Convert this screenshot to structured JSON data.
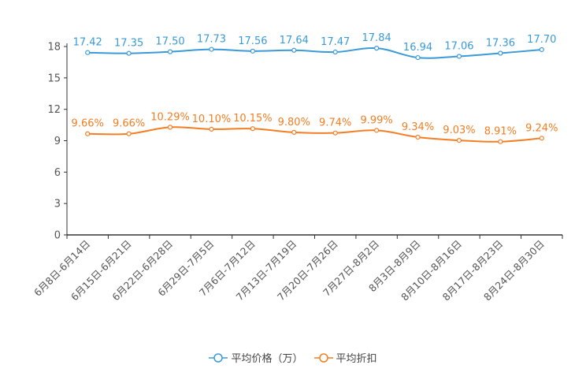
{
  "chart_data": {
    "type": "line",
    "categories": [
      "6月8日-6月14日",
      "6月15日-6月21日",
      "6月22日-6月28日",
      "6月29日-7月5日",
      "7月6日-7月12日",
      "7月13日-7月19日",
      "7月20日-7月26日",
      "7月27日-8月2日",
      "8月3日-8月9日",
      "8月10日-8月16日",
      "8月17日-8月23日",
      "8月24日-8月30日"
    ],
    "ylim": [
      0,
      18
    ],
    "yticks": [
      "0",
      "3",
      "6",
      "9",
      "12",
      "15",
      "18"
    ],
    "grid": false,
    "legend_position": "bottom",
    "series": [
      {
        "name": "平均价格（万）",
        "color": "#3a9ad9",
        "values": [
          17.42,
          17.35,
          17.5,
          17.73,
          17.56,
          17.64,
          17.47,
          17.84,
          16.94,
          17.06,
          17.36,
          17.7
        ],
        "labels": [
          "17.42",
          "17.35",
          "17.50",
          "17.73",
          "17.56",
          "17.64",
          "17.47",
          "17.84",
          "16.94",
          "17.06",
          "17.36",
          "17.70"
        ]
      },
      {
        "name": "平均折扣",
        "color": "#f57d22",
        "values": [
          9.66,
          9.66,
          10.29,
          10.1,
          10.15,
          9.8,
          9.74,
          9.99,
          9.34,
          9.03,
          8.91,
          9.24
        ],
        "labels": [
          "9.66%",
          "9.66%",
          "10.29%",
          "10.10%",
          "10.15%",
          "9.80%",
          "9.74%",
          "9.99%",
          "9.34%",
          "9.03%",
          "8.91%",
          "9.24%"
        ]
      }
    ]
  }
}
